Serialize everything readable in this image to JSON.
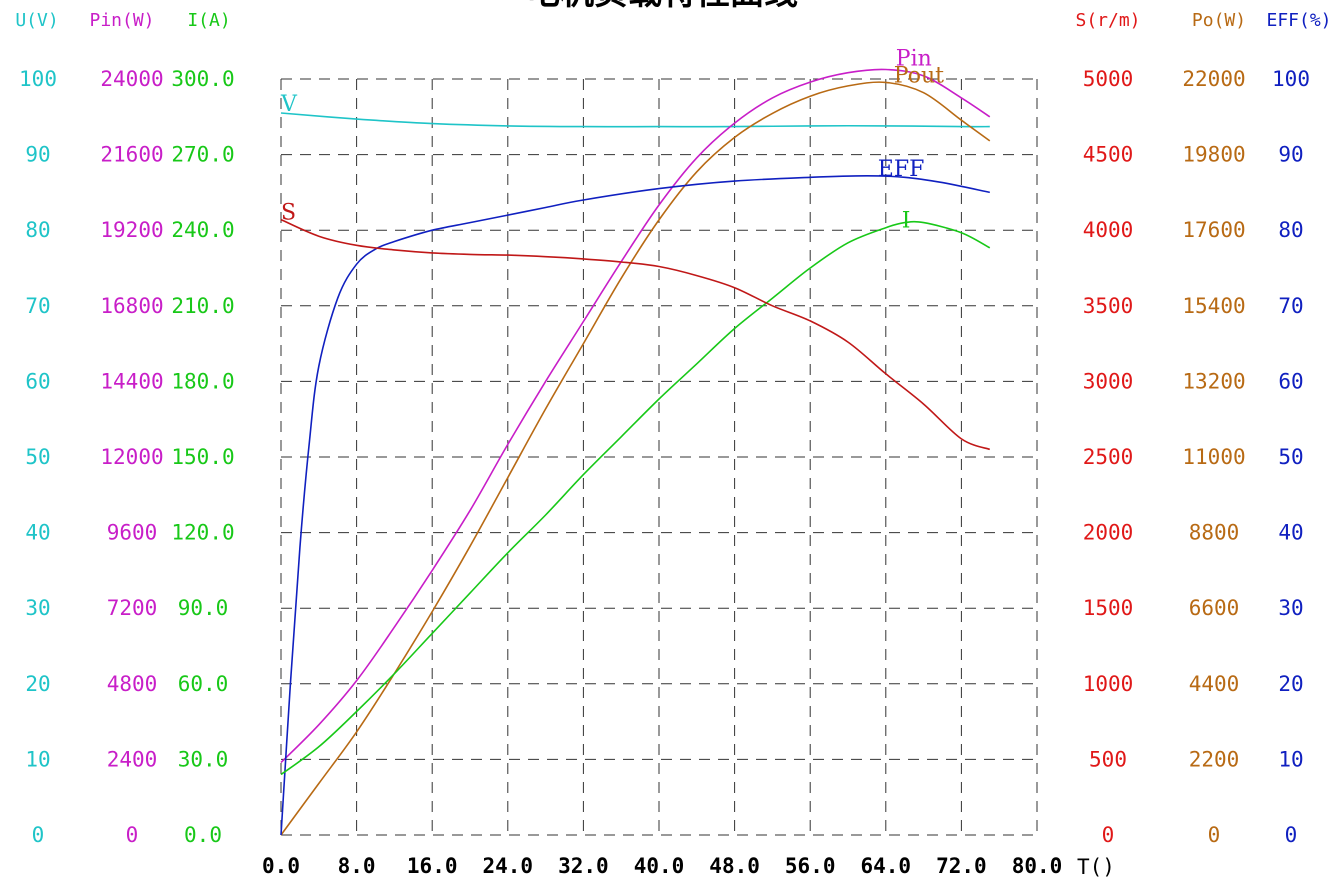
{
  "chart_data": {
    "type": "line",
    "title": "电机负载特性曲线",
    "xlabel": "T()",
    "x_ticks": [
      "0.0",
      "8.0",
      "16.0",
      "24.0",
      "32.0",
      "40.0",
      "48.0",
      "56.0",
      "64.0",
      "72.0",
      "80.0"
    ],
    "xlim": [
      0,
      80
    ],
    "grid": true,
    "left_axes": [
      {
        "header": "U(V)",
        "color": "#1fc4c8",
        "ticks": [
          "0",
          "10",
          "20",
          "30",
          "40",
          "50",
          "60",
          "70",
          "80",
          "90",
          "100"
        ]
      },
      {
        "header": "Pin(W)",
        "color": "#c81ec8",
        "ticks": [
          "0",
          "2400",
          "4800",
          "7200",
          "9600",
          "12000",
          "14400",
          "16800",
          "19200",
          "21600",
          "24000"
        ]
      },
      {
        "header": "I(A)",
        "color": "#18c818",
        "ticks": [
          "0.0",
          "30.0",
          "60.0",
          "90.0",
          "120.0",
          "150.0",
          "180.0",
          "210.0",
          "240.0",
          "270.0",
          "300.0"
        ]
      }
    ],
    "right_axes": [
      {
        "header": "S(r/m)",
        "color": "#e01818",
        "ticks": [
          "0",
          "500",
          "1000",
          "1500",
          "2000",
          "2500",
          "3000",
          "3500",
          "4000",
          "4500",
          "5000"
        ]
      },
      {
        "header": "Po(W)",
        "color": "#b86a14",
        "ticks": [
          "0",
          "2200",
          "4400",
          "6600",
          "8800",
          "11000",
          "13200",
          "15400",
          "17600",
          "19800",
          "22000"
        ]
      },
      {
        "header": "EFF(%)",
        "color": "#1020c0",
        "ticks": [
          "0",
          "10",
          "20",
          "30",
          "40",
          "50",
          "60",
          "70",
          "80",
          "90",
          "100"
        ]
      }
    ],
    "series": [
      {
        "name": "V",
        "color": "#1fc4c8",
        "ymax": 100,
        "x": [
          0,
          8,
          16,
          24,
          32,
          40,
          48,
          56,
          64,
          72,
          75
        ],
        "y": [
          95.5,
          94.7,
          94.1,
          93.8,
          93.7,
          93.7,
          93.7,
          93.8,
          93.8,
          93.7,
          93.7
        ]
      },
      {
        "name": "Pin",
        "color": "#c81ec8",
        "ymax": 24000,
        "x": [
          0,
          4,
          8,
          12,
          16,
          20,
          24,
          28,
          32,
          36,
          40,
          44,
          48,
          52,
          56,
          60,
          64,
          68,
          72,
          75
        ],
        "y": [
          2300,
          3500,
          4900,
          6600,
          8400,
          10300,
          12400,
          14400,
          16300,
          18200,
          20000,
          21500,
          22600,
          23400,
          23900,
          24200,
          24300,
          24100,
          23400,
          22800
        ]
      },
      {
        "name": "Pout",
        "color": "#b86a14",
        "ymax": 22000,
        "x": [
          0,
          4,
          8,
          12,
          16,
          20,
          24,
          28,
          32,
          36,
          40,
          44,
          48,
          52,
          56,
          60,
          64,
          68,
          72,
          75
        ],
        "y": [
          0,
          1500,
          3000,
          4700,
          6500,
          8400,
          10400,
          12400,
          14300,
          16200,
          17900,
          19300,
          20300,
          21000,
          21500,
          21800,
          21900,
          21600,
          20800,
          20200
        ]
      },
      {
        "name": "EFF",
        "color": "#1020c0",
        "ymax": 100,
        "x": [
          0,
          1,
          2,
          3,
          4,
          6,
          8,
          10,
          12,
          16,
          20,
          24,
          28,
          32,
          40,
          48,
          56,
          62,
          66,
          70,
          75
        ],
        "y": [
          0,
          20,
          38,
          52,
          62,
          71,
          75.5,
          77.5,
          78.5,
          80,
          81,
          82,
          83,
          84,
          85.5,
          86.5,
          87,
          87.2,
          87,
          86.3,
          85
        ]
      },
      {
        "name": "I",
        "color": "#18c818",
        "ymax": 300,
        "x": [
          0,
          4,
          8,
          12,
          16,
          20,
          24,
          28,
          32,
          36,
          40,
          44,
          48,
          52,
          56,
          60,
          64,
          66,
          68,
          72,
          75
        ],
        "y": [
          24,
          35,
          49,
          64,
          80,
          96,
          112,
          127,
          143,
          158,
          173,
          187,
          201,
          213,
          225,
          235,
          241,
          243,
          243,
          239,
          233
        ]
      },
      {
        "name": "S",
        "color": "#c01818",
        "ymax": 5000,
        "x": [
          0,
          4,
          8,
          12,
          16,
          20,
          24,
          28,
          32,
          36,
          40,
          44,
          48,
          52,
          56,
          60,
          64,
          68,
          72,
          75
        ],
        "y": [
          4070,
          3960,
          3900,
          3870,
          3850,
          3840,
          3835,
          3825,
          3810,
          3790,
          3760,
          3700,
          3620,
          3500,
          3400,
          3260,
          3050,
          2850,
          2620,
          2550
        ]
      }
    ]
  }
}
